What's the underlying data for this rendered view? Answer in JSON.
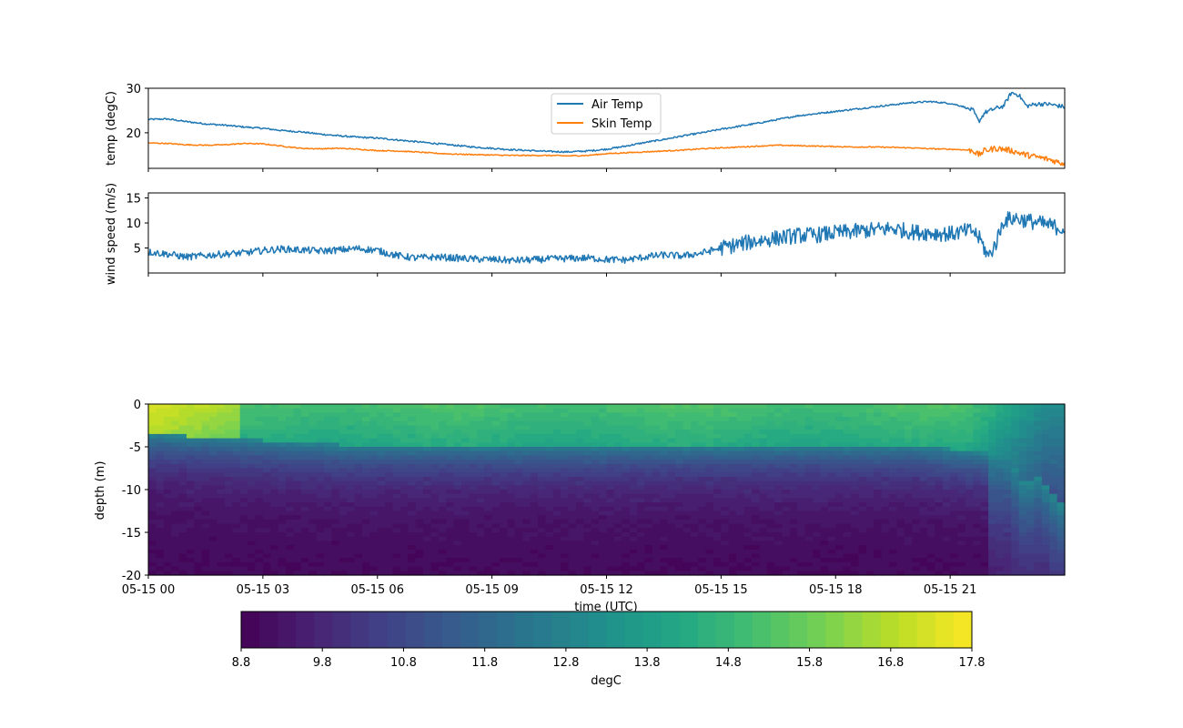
{
  "chart_data": [
    {
      "type": "line",
      "ylabel": "temp (degC)",
      "ylim": [
        12,
        30
      ],
      "yticks": [
        20,
        30
      ],
      "xlim_hours": [
        0,
        24
      ],
      "series": [
        {
          "name": "Air Temp",
          "color": "#1f77b4",
          "x": [
            0,
            0.5,
            1,
            1.5,
            2,
            2.5,
            3,
            3.5,
            4,
            4.5,
            5,
            5.5,
            6,
            6.5,
            7,
            7.5,
            8,
            8.5,
            9,
            9.5,
            10,
            10.5,
            11,
            11.5,
            12,
            12.5,
            13,
            13.5,
            14,
            14.5,
            15,
            15.5,
            16,
            16.5,
            17,
            17.5,
            18,
            18.5,
            19,
            19.5,
            20,
            20.5,
            21,
            21.3,
            21.6,
            21.75,
            21.9,
            22.2,
            22.4,
            22.6,
            22.8,
            23,
            23.3,
            23.6,
            24
          ],
          "values": [
            23.0,
            23.1,
            22.5,
            22.0,
            21.7,
            21.3,
            21.0,
            20.5,
            20.2,
            19.7,
            19.3,
            19.0,
            18.8,
            18.4,
            18.0,
            17.6,
            17.2,
            16.8,
            16.5,
            16.2,
            16.0,
            15.8,
            15.7,
            15.9,
            16.3,
            17.0,
            17.8,
            18.5,
            19.3,
            20.0,
            20.8,
            21.5,
            22.2,
            23.0,
            23.8,
            24.3,
            24.8,
            25.3,
            25.8,
            26.3,
            26.8,
            27.0,
            26.6,
            26.0,
            25.0,
            22.5,
            24.5,
            25.5,
            26.0,
            29.0,
            28.5,
            26.0,
            26.5,
            26.4,
            25.8
          ]
        },
        {
          "name": "Skin Temp",
          "color": "#ff7f0e",
          "x": [
            0,
            0.5,
            1,
            1.5,
            2,
            2.5,
            3,
            3.5,
            4,
            4.5,
            5,
            5.5,
            6,
            6.5,
            7,
            7.5,
            8,
            8.5,
            9,
            9.5,
            10,
            10.5,
            11,
            11.5,
            12,
            12.5,
            13,
            13.5,
            14,
            14.5,
            15,
            15.5,
            16,
            16.5,
            17,
            17.5,
            18,
            18.5,
            19,
            19.5,
            20,
            20.5,
            21,
            21.3,
            21.6,
            21.75,
            21.9,
            22.2,
            22.4,
            22.6,
            22.8,
            23,
            23.3,
            23.6,
            24
          ],
          "values": [
            17.7,
            17.6,
            17.3,
            17.2,
            17.3,
            17.6,
            17.5,
            17.0,
            16.5,
            16.4,
            16.5,
            16.3,
            16.0,
            15.9,
            15.7,
            15.4,
            15.2,
            15.1,
            15.0,
            14.9,
            14.9,
            14.9,
            14.8,
            14.9,
            15.3,
            15.5,
            15.7,
            15.9,
            16.1,
            16.4,
            16.6,
            16.8,
            17.0,
            17.2,
            17.1,
            17.0,
            16.9,
            16.8,
            16.8,
            16.7,
            16.6,
            16.4,
            16.3,
            16.2,
            16.0,
            15.0,
            16.0,
            16.5,
            16.3,
            16.0,
            15.5,
            15.0,
            14.5,
            14.0,
            13.0
          ]
        }
      ],
      "legend": "top-center"
    },
    {
      "type": "line",
      "ylabel": "wind speed (m/s)",
      "ylim": [
        0,
        16
      ],
      "yticks": [
        5,
        10,
        15
      ],
      "xlim_hours": [
        0,
        24
      ],
      "series": [
        {
          "color": "#1f77b4",
          "x": [
            0,
            0.5,
            1,
            1.5,
            2,
            2.5,
            3,
            3.5,
            4,
            4.5,
            5,
            5.5,
            6,
            6.5,
            7,
            7.5,
            8,
            8.5,
            9,
            9.5,
            10,
            10.5,
            11,
            11.5,
            12,
            12.5,
            13,
            13.5,
            14,
            14.5,
            15,
            15.5,
            16,
            16.5,
            17,
            17.5,
            18,
            18.5,
            19,
            19.5,
            20,
            20.5,
            21,
            21.3,
            21.6,
            21.8,
            22,
            22.2,
            22.4,
            22.7,
            23,
            23.3,
            23.6,
            24
          ],
          "values": [
            4.2,
            3.8,
            3.2,
            3.5,
            3.8,
            4.0,
            4.5,
            4.8,
            4.6,
            4.4,
            4.6,
            4.9,
            4.5,
            3.5,
            3.0,
            3.2,
            3.0,
            2.8,
            2.7,
            2.5,
            2.6,
            2.8,
            2.9,
            3.0,
            2.7,
            2.6,
            3.2,
            3.6,
            3.4,
            4.0,
            5.0,
            5.8,
            6.5,
            7.0,
            7.5,
            7.6,
            8.0,
            8.3,
            8.6,
            8.9,
            8.2,
            8.0,
            7.8,
            8.2,
            8.5,
            6.5,
            3.2,
            6.0,
            10.5,
            11.0,
            10.5,
            10.0,
            9.5,
            8.8
          ]
        }
      ]
    },
    {
      "type": "heatmap",
      "ylabel": "depth (m)",
      "xlabel": "time (UTC)",
      "ylim": [
        -20,
        0
      ],
      "yticks": [
        0,
        -5,
        -10,
        -15,
        -20
      ],
      "xlim_hours": [
        0,
        24
      ],
      "xticks_hours": [
        0,
        3,
        6,
        9,
        12,
        15,
        18,
        21
      ],
      "xtick_labels": [
        "05-15 00",
        "05-15 03",
        "05-15 06",
        "05-15 09",
        "05-15 12",
        "05-15 15",
        "05-15 18",
        "05-15 21"
      ],
      "colorscale": "viridis",
      "colorbar": {
        "label": "degC",
        "vmin": 8.8,
        "vmax": 17.8,
        "ticks": [
          "8.8",
          "9.8",
          "10.8",
          "11.8",
          "12.8",
          "13.8",
          "14.8",
          "15.8",
          "16.8",
          "17.8"
        ],
        "levels": 40
      }
    }
  ]
}
